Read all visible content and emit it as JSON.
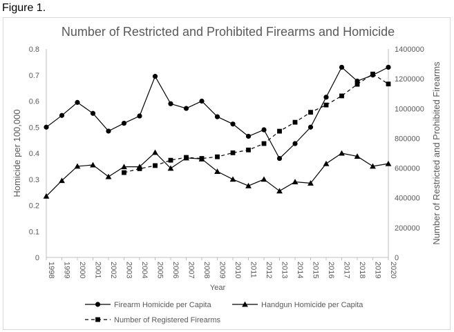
{
  "figure_label": "Figure 1.",
  "chart_data": {
    "type": "line",
    "title": "Number of Restricted and Prohibited Firearms and Homicide",
    "xlabel": "Year",
    "ylabel_left": "Homicide per 100,000",
    "ylabel_right": "Number of Restricted and Prohibited Firearms",
    "x": [
      "1998",
      "1999",
      "2000",
      "2001",
      "2002",
      "2003",
      "2004",
      "2005",
      "2006",
      "2007",
      "2008",
      "2009",
      "2010",
      "2011",
      "2012",
      "2013",
      "2014",
      "2015",
      "2016",
      "2017",
      "2018",
      "2019",
      "2020"
    ],
    "ylim_left": [
      0,
      0.8
    ],
    "yticks_left": [
      "0",
      "0.1",
      "0.2",
      "0.3",
      "0.4",
      "0.5",
      "0.6",
      "0.7",
      "0.8"
    ],
    "ylim_right": [
      0,
      1400000
    ],
    "yticks_right": [
      "0",
      "200000",
      "400000",
      "600000",
      "800000",
      "1000000",
      "1200000",
      "1400000"
    ],
    "grid": false,
    "legend_position": "bottom",
    "series": [
      {
        "name": "Firearm Homicide per Capita",
        "axis": "left",
        "marker": "circle",
        "line": "solid",
        "color": "#000000",
        "values": [
          0.5,
          0.545,
          0.595,
          0.553,
          0.485,
          0.515,
          0.543,
          0.695,
          0.59,
          0.572,
          0.6,
          0.54,
          0.512,
          0.465,
          0.49,
          0.38,
          0.437,
          0.5,
          0.615,
          0.73,
          0.677,
          0.7,
          0.73
        ]
      },
      {
        "name": "Handgun Homicide per Capita",
        "axis": "left",
        "marker": "triangle",
        "line": "solid",
        "color": "#000000",
        "values": [
          0.235,
          0.295,
          0.35,
          0.355,
          0.31,
          0.348,
          0.348,
          0.403,
          0.342,
          0.382,
          0.378,
          0.33,
          0.3,
          0.275,
          0.3,
          0.255,
          0.29,
          0.285,
          0.36,
          0.4,
          0.388,
          0.35,
          0.36
        ]
      },
      {
        "name": "Number of Registered Firearms",
        "axis": "right",
        "marker": "square",
        "line": "dashed",
        "color": "#000000",
        "values": [
          null,
          null,
          null,
          null,
          null,
          570000,
          596000,
          617000,
          653000,
          672000,
          665000,
          676000,
          703000,
          722000,
          765000,
          848000,
          908000,
          975000,
          1024000,
          1085000,
          1163000,
          1232000,
          1165000
        ]
      }
    ]
  }
}
